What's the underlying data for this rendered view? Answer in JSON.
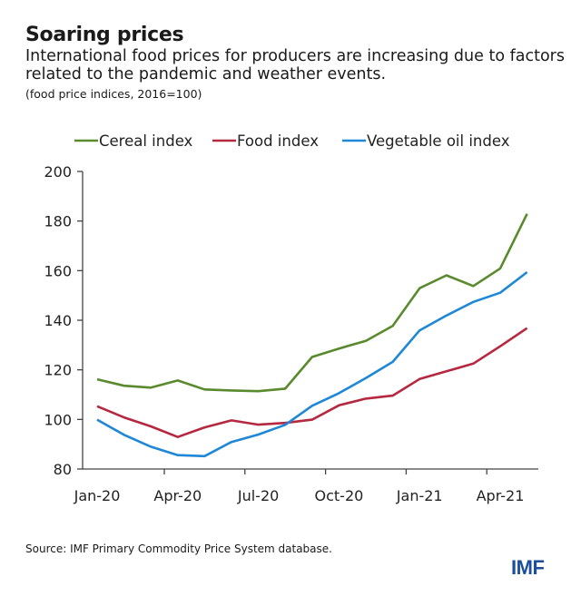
{
  "header": {
    "title": "Soaring prices",
    "subtitle": "International food prices for producers are increasing due to factors related to the pandemic and weather events.",
    "note": "(food price indices, 2016=100)"
  },
  "footer": {
    "source": "Source: IMF Primary Commodity Price System database.",
    "logo": "IMF"
  },
  "chart_data": {
    "type": "line",
    "title": "Soaring prices",
    "xlabel": "",
    "ylabel": "",
    "ylim": [
      80,
      200
    ],
    "yticks": [
      80,
      100,
      120,
      140,
      160,
      180,
      200
    ],
    "x": [
      "Jan-20",
      "Feb-20",
      "Mar-20",
      "Apr-20",
      "May-20",
      "Jun-20",
      "Jul-20",
      "Aug-20",
      "Sep-20",
      "Oct-20",
      "Nov-20",
      "Dec-20",
      "Jan-21",
      "Feb-21",
      "Mar-21",
      "Apr-21",
      "May-21"
    ],
    "xtick_labels": [
      "Jan-20",
      "Apr-20",
      "Jul-20",
      "Oct-20",
      "Jan-21",
      "Apr-21"
    ],
    "grid": false,
    "legend_position": "top",
    "series": [
      {
        "name": "Cereal  index",
        "color": "#5a8a2e",
        "values": [
          116.2,
          113.6,
          112.8,
          115.7,
          112.1,
          111.7,
          111.4,
          112.4,
          125.2,
          128.6,
          131.7,
          137.7,
          152.9,
          158.1,
          153.8,
          160.9,
          182.9
        ]
      },
      {
        "name": "Food index",
        "color": "#b5283f",
        "values": [
          105.3,
          100.8,
          97.2,
          92.9,
          96.8,
          99.6,
          97.9,
          98.6,
          99.9,
          105.7,
          108.4,
          109.6,
          116.3,
          119.4,
          122.5,
          129.5,
          136.8
        ]
      },
      {
        "name": "Vegetable oil index",
        "color": "#1e88d6",
        "values": [
          99.9,
          93.8,
          89.0,
          85.6,
          85.2,
          90.9,
          93.9,
          97.8,
          105.5,
          110.6,
          116.7,
          123.2,
          135.9,
          141.9,
          147.4,
          151.1,
          159.4
        ]
      }
    ]
  }
}
